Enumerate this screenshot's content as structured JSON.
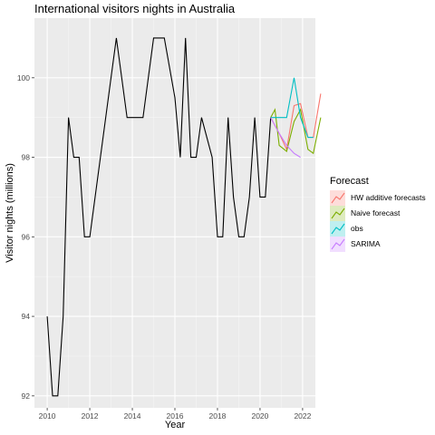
{
  "chart_data": {
    "type": "line",
    "title": "International visitors nights in Australia",
    "xlabel": "Year",
    "ylabel": "Visitor nights (millions)",
    "xlim": [
      2009.4,
      2022.6
    ],
    "ylim": [
      91.7,
      101.5
    ],
    "x_ticks": [
      2010,
      2012,
      2014,
      2016,
      2018,
      2020,
      2022
    ],
    "y_ticks": [
      92,
      94,
      96,
      98,
      100
    ],
    "grid": true,
    "legend": {
      "title": "Forecast",
      "placement": "right"
    },
    "history": {
      "color": "#000000",
      "points": [
        [
          2010.0,
          94
        ],
        [
          2010.25,
          92
        ],
        [
          2010.5,
          92
        ],
        [
          2010.75,
          94
        ],
        [
          2011.0,
          99
        ],
        [
          2011.25,
          98
        ],
        [
          2011.5,
          98
        ],
        [
          2011.75,
          96
        ],
        [
          2012.0,
          96
        ],
        [
          2012.5,
          98
        ],
        [
          2013.0,
          100
        ],
        [
          2013.25,
          101
        ],
        [
          2013.75,
          99
        ],
        [
          2014.25,
          99
        ],
        [
          2014.5,
          99
        ],
        [
          2015.0,
          101
        ],
        [
          2015.5,
          101
        ],
        [
          2016.0,
          99.5
        ],
        [
          2016.25,
          98
        ],
        [
          2016.5,
          101
        ],
        [
          2016.75,
          98
        ],
        [
          2017.0,
          98
        ],
        [
          2017.25,
          99
        ],
        [
          2017.75,
          98
        ],
        [
          2018.0,
          96
        ],
        [
          2018.25,
          96
        ],
        [
          2018.5,
          99
        ],
        [
          2018.75,
          97
        ],
        [
          2019.0,
          96
        ],
        [
          2019.25,
          96
        ],
        [
          2019.5,
          97
        ],
        [
          2019.75,
          99
        ],
        [
          2020.0,
          97
        ],
        [
          2020.25,
          97
        ],
        [
          2020.5,
          99
        ]
      ]
    },
    "series": [
      {
        "name": "HW additive forecasts",
        "color": "#F8766D",
        "points": [
          [
            2020.5,
            99
          ],
          [
            2020.9,
            98.6
          ],
          [
            2021.25,
            98.2
          ],
          [
            2021.6,
            99.3
          ],
          [
            2021.9,
            99.35
          ],
          [
            2022.25,
            98.5
          ],
          [
            2022.5,
            98.5
          ],
          [
            2022.85,
            99.6
          ]
        ]
      },
      {
        "name": "Naive forecast",
        "color": "#7CAE00",
        "points": [
          [
            2020.5,
            99
          ],
          [
            2020.7,
            99.2
          ],
          [
            2020.9,
            98.3
          ],
          [
            2021.25,
            98.15
          ],
          [
            2021.6,
            98.9
          ],
          [
            2021.9,
            99.2
          ],
          [
            2022.25,
            98.2
          ],
          [
            2022.5,
            98.1
          ],
          [
            2022.85,
            99
          ]
        ]
      },
      {
        "name": "obs",
        "color": "#00BFC4",
        "points": [
          [
            2020.5,
            99
          ],
          [
            2020.9,
            99
          ],
          [
            2021.25,
            99
          ],
          [
            2021.6,
            100
          ],
          [
            2021.9,
            99
          ],
          [
            2022.25,
            98.5
          ],
          [
            2022.5,
            98.5
          ]
        ]
      },
      {
        "name": "SARIMA",
        "color": "#C77CFF",
        "points": [
          [
            2020.5,
            99
          ],
          [
            2020.9,
            98.6
          ],
          [
            2021.25,
            98.3
          ],
          [
            2021.6,
            98.1
          ],
          [
            2021.9,
            98.0
          ]
        ]
      }
    ]
  }
}
